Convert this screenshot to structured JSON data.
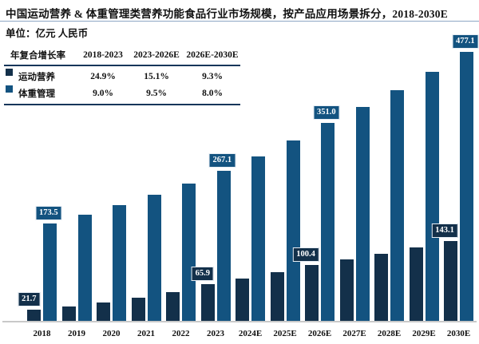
{
  "page": {
    "title": "中国运动营养 & 体重管理类营养功能食品行业市场规模，按产品应用场景拆分，2018-2030E",
    "unit_label": "单位：亿元 人民币"
  },
  "colors": {
    "sports_nutrition": "#13304a",
    "weight_management": "#135380",
    "title_rule": "#8ea6c4",
    "table_border": "#16365a",
    "axis_line": "#c9c9c9",
    "label_text": "#ffffff"
  },
  "cagr_table": {
    "corner_label": "年复合增长率",
    "period_headers": [
      "2018-2023",
      "2023-2026E",
      "2026E-2030E"
    ],
    "rows": [
      {
        "label": "运动营养",
        "swatch": "#13304a",
        "values": [
          "24.9%",
          "15.1%",
          "9.3%"
        ]
      },
      {
        "label": "体重管理",
        "swatch": "#135380",
        "values": [
          "9.0%",
          "9.5%",
          "8.0%"
        ]
      }
    ]
  },
  "chart_data": {
    "type": "bar",
    "title": "中国运动营养 & 体重管理类营养功能食品行业市场规模，按产品应用场景拆分，2018-2030E",
    "ylabel": "亿元人民币",
    "ylim": [
      0,
      500
    ],
    "grid": false,
    "legend_position": "top-left-table",
    "categories": [
      "2018",
      "2019",
      "2020",
      "2021",
      "2022",
      "2023",
      "2024E",
      "2025E",
      "2026E",
      "2027E",
      "2028E",
      "2029E",
      "2030E"
    ],
    "series": [
      {
        "name": "运动营养",
        "color": "#13304a",
        "values": [
          21.7,
          27.1,
          33.9,
          42.3,
          52.8,
          65.9,
          75.9,
          87.3,
          100.4,
          109.7,
          119.9,
          131.1,
          143.1
        ],
        "data_labels": {
          "2018": "21.7",
          "2023": "65.9",
          "2026E": "100.4",
          "2030E": "143.1"
        }
      },
      {
        "name": "体重管理",
        "color": "#135380",
        "values": [
          173.5,
          189.1,
          206.1,
          224.7,
          244.9,
          267.1,
          292.5,
          320.3,
          351.0,
          379.1,
          409.4,
          442.2,
          477.1
        ],
        "data_labels": {
          "2018": "173.5",
          "2023": "267.1",
          "2026E": "351.0",
          "2030E": "477.1"
        }
      }
    ]
  }
}
